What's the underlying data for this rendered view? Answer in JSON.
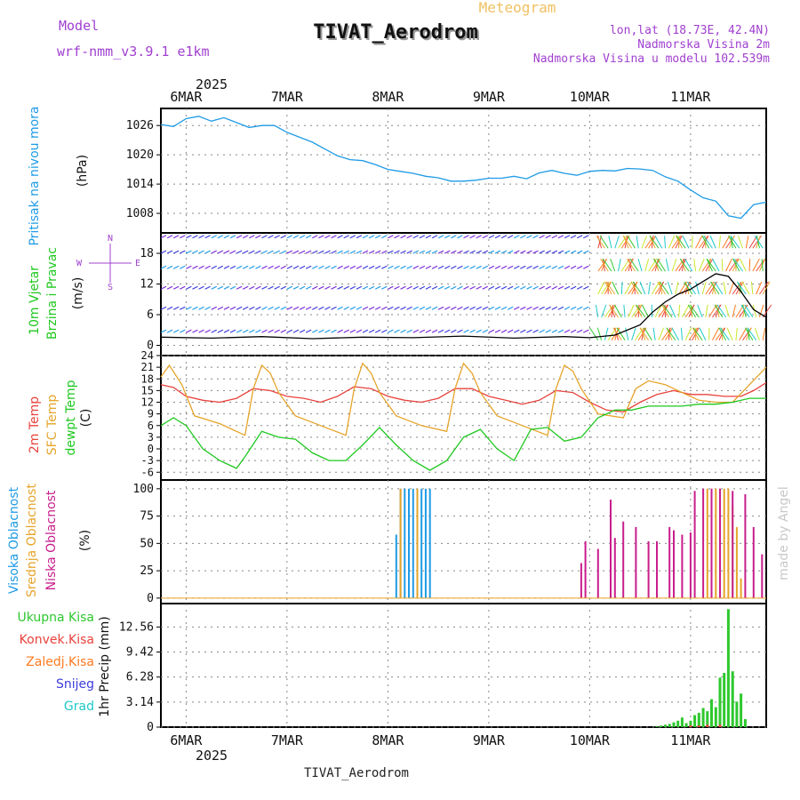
{
  "header": {
    "model_label": "Model",
    "model_name": "wrf-nmm_v3.9.1 e1km",
    "subtitle": "Meteogram",
    "title": "TIVAT_Aerodrom",
    "coords": "lon,lat (18.73E, 42.4N)",
    "elevation": "Nadmorska Visina 2m",
    "model_elevation": "Nadmorska Visina u modelu 102.539m",
    "footer": "TIVAT_Aerodrom",
    "watermark": "made by Angel",
    "year": "2025"
  },
  "colors": {
    "pressure": "#1e9be6",
    "wind_speed": "#000000",
    "temp_2m": "#e8423c",
    "sfc_temp": "#e6a42a",
    "dewpoint": "#1ec81e",
    "high_cloud": "#1e9be6",
    "mid_cloud": "#e6a42a",
    "low_cloud": "#c81e8c",
    "total_precip": "#2ec82e",
    "convective": "#e8423c",
    "freezing": "#ff7a1e",
    "snow": "#3c3cdc",
    "hail": "#1ec8c8",
    "model_purple": "#a040d0"
  },
  "x_axis": {
    "day_labels": [
      "6MAR",
      "7MAR",
      "8MAR",
      "9MAR",
      "10MAR",
      "11MAR"
    ],
    "day_offsets_h": [
      6,
      30,
      54,
      78,
      102,
      126
    ],
    "range_h": [
      0,
      144
    ],
    "unit": "hours from 2025-03-05 18 UTC"
  },
  "chart_data": [
    {
      "id": "pressure",
      "type": "line",
      "ylabel": "Pritisak na nivou mora",
      "units": "(hPa)",
      "yticks": [
        1008,
        1014,
        1020,
        1026
      ],
      "ylim": [
        1004,
        1029.5
      ],
      "grid": true,
      "series": [
        {
          "color_key": "pressure",
          "x": [
            0,
            3,
            6,
            9,
            12,
            15,
            18,
            21,
            24,
            27,
            30,
            33,
            36,
            39,
            42,
            45,
            48,
            51,
            54,
            57,
            60,
            63,
            66,
            69,
            72,
            75,
            78,
            81,
            84,
            87,
            90,
            93,
            96,
            99,
            102,
            105,
            108,
            111,
            114,
            117,
            120,
            123,
            126,
            129,
            132,
            135,
            138,
            141,
            144
          ],
          "values": [
            1026.2,
            1025.8,
            1027.4,
            1027.9,
            1026.9,
            1027.6,
            1026.6,
            1025.6,
            1026.0,
            1026.0,
            1024.6,
            1023.6,
            1022.6,
            1021.2,
            1019.8,
            1019.0,
            1018.8,
            1018.0,
            1017.0,
            1016.6,
            1016.2,
            1015.6,
            1015.3,
            1014.6,
            1014.6,
            1014.8,
            1015.2,
            1015.2,
            1015.6,
            1015.1,
            1016.3,
            1016.8,
            1016.2,
            1015.8,
            1016.6,
            1016.8,
            1016.7,
            1017.2,
            1017.1,
            1016.8,
            1015.5,
            1014.6,
            1012.8,
            1011.2,
            1010.5,
            1007.5,
            1007.0,
            1009.8,
            1010.3
          ]
        }
      ]
    },
    {
      "id": "wind",
      "type": "line",
      "ylabel_1": "10m Vjetar",
      "ylabel_2": "Brzina i Pravac",
      "units": "(m/s)",
      "compass": [
        "N",
        "S",
        "W",
        "E"
      ],
      "yticks": [
        0,
        6,
        12,
        18
      ],
      "ylim": [
        -2,
        22
      ],
      "grid": true,
      "series": [
        {
          "name": "wind speed",
          "color_key": "wind_speed",
          "x": [
            0,
            12,
            24,
            36,
            48,
            60,
            72,
            84,
            96,
            102,
            108,
            114,
            117,
            120,
            123,
            126,
            129,
            132,
            135,
            138,
            141,
            144
          ],
          "values": [
            1.6,
            1.4,
            1.7,
            1.3,
            1.6,
            1.5,
            1.8,
            1.4,
            1.7,
            1.5,
            2.0,
            4.0,
            6.5,
            8.5,
            10.0,
            11.0,
            12.5,
            14.0,
            13.5,
            10.5,
            7.0,
            5.5
          ]
        }
      ]
    },
    {
      "id": "temperature",
      "type": "line",
      "ylabel_1": "2m Temp",
      "ylabel_2": "SFC Temp",
      "ylabel_3": "dewpt Temp",
      "units": "(C)",
      "yticks": [
        -6,
        -3,
        0,
        3,
        6,
        9,
        12,
        15,
        18,
        21,
        24
      ],
      "ylim": [
        -8,
        24
      ],
      "grid": true,
      "series": [
        {
          "name": "2m Temp",
          "color_key": "temp_2m",
          "x": [
            0,
            3,
            6,
            10,
            14,
            18,
            22,
            26,
            30,
            34,
            38,
            42,
            46,
            50,
            54,
            58,
            62,
            66,
            70,
            74,
            78,
            82,
            86,
            90,
            94,
            98,
            102,
            106,
            110,
            114,
            118,
            122,
            126,
            130,
            134,
            138,
            141,
            144
          ],
          "values": [
            16.5,
            15.8,
            13.5,
            12.5,
            12.0,
            13.0,
            15.5,
            15.0,
            13.5,
            13.0,
            12.0,
            13.5,
            16.0,
            15.5,
            13.5,
            12.5,
            12.0,
            13.0,
            15.5,
            15.5,
            13.5,
            12.5,
            11.5,
            12.5,
            15.0,
            14.5,
            12.0,
            10.0,
            9.5,
            12.0,
            14.0,
            15.0,
            14.0,
            14.0,
            13.5,
            13.5,
            15.0,
            17.0
          ]
        },
        {
          "name": "SFC Temp",
          "color_key": "sfc_temp",
          "x": [
            0,
            2,
            5,
            8,
            14,
            20,
            22,
            24,
            26,
            28,
            32,
            38,
            44,
            46,
            48,
            50,
            52,
            56,
            62,
            68,
            70,
            72,
            74,
            76,
            80,
            86,
            92,
            94,
            96,
            98,
            100,
            104,
            110,
            113,
            116,
            120,
            124,
            128,
            132,
            136,
            140,
            144
          ],
          "values": [
            18.5,
            21.5,
            16.5,
            8.5,
            6.5,
            3.5,
            15.5,
            21.5,
            19.5,
            14.5,
            8.5,
            6.0,
            3.5,
            15.5,
            22.0,
            19.5,
            14.5,
            8.5,
            6.0,
            4.5,
            15.5,
            22.0,
            19.5,
            14.5,
            8.5,
            6.0,
            3.5,
            15.5,
            21.5,
            20.0,
            15.5,
            9.0,
            8.0,
            15.5,
            17.5,
            16.5,
            14.5,
            12.5,
            12.0,
            12.0,
            16.5,
            21.0
          ]
        },
        {
          "name": "dewpt Temp",
          "color_key": "dewpoint",
          "x": [
            0,
            3,
            6,
            10,
            14,
            18,
            20,
            24,
            28,
            32,
            36,
            40,
            44,
            48,
            52,
            56,
            60,
            64,
            68,
            72,
            76,
            80,
            84,
            88,
            92,
            96,
            100,
            104,
            108,
            112,
            116,
            120,
            124,
            128,
            132,
            136,
            140,
            144
          ],
          "values": [
            6.0,
            8.0,
            6.0,
            0.0,
            -3.0,
            -5.0,
            -2.0,
            4.5,
            3.0,
            2.5,
            -1.0,
            -3.0,
            -3.0,
            1.0,
            5.5,
            1.0,
            -3.0,
            -5.5,
            -3.0,
            3.0,
            5.0,
            0.0,
            -3.0,
            5.0,
            5.5,
            2.0,
            3.0,
            8.0,
            10.0,
            10.0,
            11.0,
            11.0,
            11.0,
            11.5,
            11.5,
            12.0,
            13.0,
            13.0
          ]
        }
      ]
    },
    {
      "id": "cloud",
      "type": "bar",
      "ylabel_1": "Visoka Oblacnost",
      "ylabel_2": "Srednja Oblacnost",
      "ylabel_3": "Niska Oblacnost",
      "units": "(%)",
      "yticks": [
        0,
        25,
        50,
        75,
        100
      ],
      "ylim": [
        -5,
        108
      ],
      "grid": true,
      "series": [
        {
          "name": "Visoka Oblacnost",
          "color_key": "high_cloud",
          "x": [
            56,
            57,
            58,
            59,
            60,
            61,
            62,
            63,
            64,
            107
          ],
          "values": [
            58,
            100,
            100,
            100,
            100,
            100,
            100,
            100,
            100,
            44
          ]
        },
        {
          "name": "Srednja Oblacnost",
          "color_key": "mid_cloud",
          "x": [
            57,
            61,
            130,
            131,
            132,
            133,
            134,
            135,
            136,
            137,
            138
          ],
          "values": [
            100,
            100,
            100,
            100,
            100,
            100,
            100,
            100,
            85,
            65,
            18
          ]
        },
        {
          "name": "Niska Oblacnost",
          "color_key": "low_cloud",
          "x": [
            100,
            101,
            104,
            107,
            108,
            110,
            113,
            116,
            118,
            121,
            122,
            124,
            126,
            127,
            129,
            131,
            133,
            136,
            139,
            141,
            143
          ],
          "values": [
            32,
            52,
            45,
            90,
            55,
            70,
            65,
            52,
            52,
            65,
            62,
            58,
            60,
            98,
            100,
            100,
            100,
            98,
            95,
            65,
            40
          ]
        }
      ]
    },
    {
      "id": "precip",
      "type": "bar",
      "legend": [
        "Ukupna Kisa",
        "Konvek.Kisa",
        "Zaledj.Kisa",
        "Snijeg",
        "Grad"
      ],
      "units": "1hr Precip (mm)",
      "yticks": [
        0,
        3.14,
        6.28,
        9.42,
        12.56
      ],
      "ylim": [
        0,
        15.5
      ],
      "grid": true,
      "series": [
        {
          "name": "Ukupna Kisa",
          "color_key": "total_precip",
          "x": [
            118,
            119,
            120,
            121,
            122,
            123,
            124,
            125,
            126,
            127,
            128,
            129,
            130,
            131,
            132,
            133,
            134,
            135,
            136,
            137,
            138,
            139
          ],
          "values": [
            0.1,
            0.2,
            0.3,
            0.4,
            0.6,
            0.8,
            1.2,
            0.5,
            0.8,
            1.5,
            1.8,
            2.4,
            2.0,
            3.5,
            2.5,
            6.2,
            6.8,
            14.8,
            7.0,
            3.2,
            4.2,
            1.0
          ]
        },
        {
          "name": "Konvek.Kisa",
          "color_key": "convective",
          "x": [
            126,
            128,
            130,
            133
          ],
          "values": [
            0.2,
            0.2,
            0.3,
            0.3
          ]
        }
      ]
    }
  ]
}
